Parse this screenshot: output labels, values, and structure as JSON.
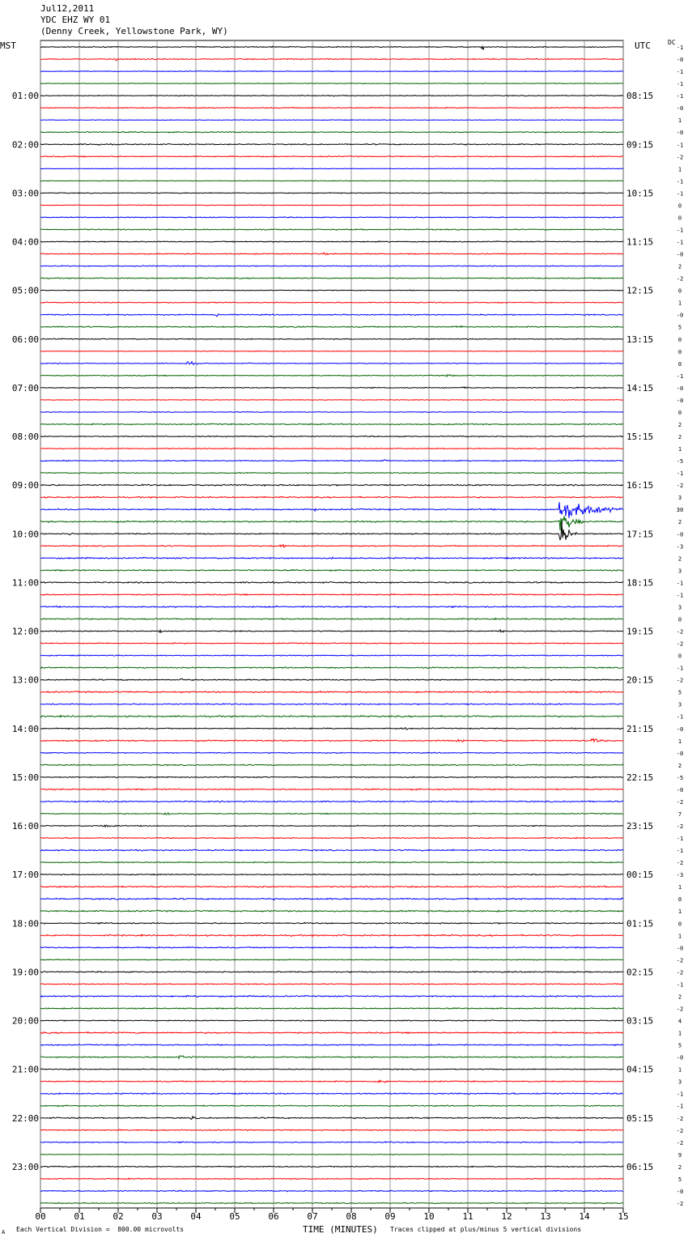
{
  "header": {
    "date": "Jul12,2011",
    "station": "YDC EHZ WY 01",
    "location": "(Denny Creek, Yellowstone Park, WY)"
  },
  "left_timezone": "MST",
  "right_timezone": "UTC",
  "dc_label": "DC",
  "footer": {
    "scale_note": "Each Vertical Division =  800.00 microvolts",
    "xlabel": "TIME (MINUTES)",
    "clip_note": "Traces clipped at plus/minus 5 vertical divisions",
    "corner_mark": "A"
  },
  "colors": {
    "trace_cycle": [
      "#000000",
      "#ff0000",
      "#0000ff",
      "#006400"
    ],
    "grid": "#808080",
    "background": "#ffffff"
  },
  "chart_data": {
    "type": "line",
    "title": "",
    "xlabel": "TIME (MINUTES)",
    "xlim": [
      0,
      15
    ],
    "xticks": [
      "00",
      "01",
      "02",
      "03",
      "04",
      "05",
      "06",
      "07",
      "08",
      "09",
      "10",
      "11",
      "12",
      "13",
      "14",
      "15"
    ],
    "left_hour_labels": [
      "01:00",
      "02:00",
      "03:00",
      "04:00",
      "05:00",
      "06:00",
      "07:00",
      "08:00",
      "09:00",
      "10:00",
      "11:00",
      "12:00",
      "13:00",
      "14:00",
      "15:00",
      "16:00",
      "17:00",
      "18:00",
      "19:00",
      "20:00",
      "21:00",
      "22:00",
      "23:00"
    ],
    "right_hour_labels": [
      "08:15",
      "09:15",
      "10:15",
      "11:15",
      "12:15",
      "13:15",
      "14:15",
      "15:15",
      "16:15",
      "17:15",
      "18:15",
      "19:15",
      "20:15",
      "21:15",
      "22:15",
      "23:15",
      "00:15",
      "01:15",
      "02:15",
      "03:15",
      "04:15",
      "05:15",
      "06:15"
    ],
    "trace_count": 96,
    "minutes_per_trace": 15,
    "dc_offsets": [
      "-1",
      "-0",
      "-1",
      "-1",
      "-1",
      "-0",
      "1",
      "-0",
      "-1",
      "-2",
      "1",
      "-1",
      "-1",
      "0",
      "0",
      "-1",
      "-1",
      "-0",
      "2",
      "-2",
      "0",
      "1",
      "-0",
      "5",
      "0",
      "0",
      "0",
      "-1",
      "-0",
      "-0",
      "0",
      "2",
      "2",
      "1",
      "-5",
      "-1",
      "-2",
      "3",
      "30",
      "2",
      "-0",
      "-3",
      "2",
      "3",
      "-1",
      "-1",
      "3",
      "0",
      "-2",
      "-2",
      "0",
      "-1",
      "-2",
      "5",
      "3",
      "-1",
      "-0",
      "1",
      "-0",
      "2",
      "-5",
      "-0",
      "-2",
      "7",
      "-2",
      "-1",
      "-1",
      "-2",
      "-3",
      "1",
      "0",
      "1",
      "0",
      "1",
      "-0",
      "-2",
      "-2",
      "-1",
      "2",
      "-2",
      "4",
      "1",
      "5",
      "-0",
      "1",
      "3",
      "-1",
      "-1",
      "-2",
      "-2",
      "-2",
      "9",
      "2",
      "5",
      "-0",
      "-2"
    ],
    "events": [
      {
        "trace": 0,
        "minute": 11.4,
        "amp": 1.5,
        "dur": 0.1
      },
      {
        "trace": 1,
        "minute": 1.95,
        "amp": 1.8,
        "dur": 0.1
      },
      {
        "trace": 1,
        "minute": 12.2,
        "amp": 0.6,
        "dur": 0.2
      },
      {
        "trace": 8,
        "minute": 1.5,
        "amp": 0.7,
        "dur": 0.1
      },
      {
        "trace": 17,
        "minute": 7.3,
        "amp": 0.5,
        "dur": 0.4
      },
      {
        "trace": 22,
        "minute": 4.55,
        "amp": 1.9,
        "dur": 0.1
      },
      {
        "trace": 23,
        "minute": 6.6,
        "amp": 0.6,
        "dur": 0.6
      },
      {
        "trace": 23,
        "minute": 10.7,
        "amp": 0.6,
        "dur": 0.6
      },
      {
        "trace": 26,
        "minute": 3.8,
        "amp": 0.8,
        "dur": 0.5
      },
      {
        "trace": 27,
        "minute": 10.5,
        "amp": 0.7,
        "dur": 0.4
      },
      {
        "trace": 28,
        "minute": 10.9,
        "amp": 0.7,
        "dur": 0.3
      },
      {
        "trace": 38,
        "minute": 7.0,
        "amp": 0.8,
        "dur": 0.6
      },
      {
        "trace": 34,
        "minute": 0.6,
        "amp": 0.8,
        "dur": 0.3
      },
      {
        "trace": 34,
        "minute": 8.8,
        "amp": 0.8,
        "dur": 0.4
      },
      {
        "trace": 38,
        "minute": 13.4,
        "amp": 5,
        "dur": 1.6
      },
      {
        "trace": 39,
        "minute": 13.4,
        "amp": 5,
        "dur": 0.6
      },
      {
        "trace": 40,
        "minute": 13.4,
        "amp": 5,
        "dur": 0.4
      },
      {
        "trace": 41,
        "minute": 6.2,
        "amp": 1.2,
        "dur": 0.2
      },
      {
        "trace": 40,
        "minute": 0.8,
        "amp": 2.5,
        "dur": 0.1
      },
      {
        "trace": 48,
        "minute": 11.8,
        "amp": 0.8,
        "dur": 0.3
      },
      {
        "trace": 48,
        "minute": 3.1,
        "amp": 0.7,
        "dur": 0.2
      },
      {
        "trace": 51,
        "minute": 1.7,
        "amp": 0.5,
        "dur": 0.5
      },
      {
        "trace": 52,
        "minute": 3.6,
        "amp": 0.6,
        "dur": 0.5
      },
      {
        "trace": 56,
        "minute": 9.3,
        "amp": 0.7,
        "dur": 0.5
      },
      {
        "trace": 57,
        "minute": 10.8,
        "amp": 0.8,
        "dur": 0.5
      },
      {
        "trace": 57,
        "minute": 14.2,
        "amp": 1.0,
        "dur": 0.7
      },
      {
        "trace": 63,
        "minute": 3.2,
        "amp": 0.9,
        "dur": 0.4
      },
      {
        "trace": 64,
        "minute": 1.6,
        "amp": 1.0,
        "dur": 0.6
      },
      {
        "trace": 66,
        "minute": 6.4,
        "amp": 0.6,
        "dur": 0.2
      },
      {
        "trace": 79,
        "minute": 14.8,
        "amp": 0.6,
        "dur": 0.3
      },
      {
        "trace": 82,
        "minute": 13.6,
        "amp": 0.6,
        "dur": 0.3
      },
      {
        "trace": 83,
        "minute": 3.6,
        "amp": 1.0,
        "dur": 0.7
      },
      {
        "trace": 85,
        "minute": 8.7,
        "amp": 1.0,
        "dur": 0.6
      },
      {
        "trace": 88,
        "minute": 3.9,
        "amp": 0.7,
        "dur": 0.4
      },
      {
        "trace": 93,
        "minute": 2.3,
        "amp": 0.6,
        "dur": 0.1
      }
    ]
  }
}
